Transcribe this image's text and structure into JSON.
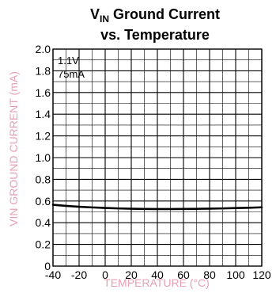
{
  "chart_data": {
    "type": "line",
    "title_main": "V",
    "title_subscript": "IN",
    "title_rest": " Ground Current",
    "title_line2": "vs. Temperature",
    "xlabel": "TEMPERATURE (°C)",
    "ylabel": "VIN GROUND CURRENT (mA)",
    "xlim": [
      -40,
      120
    ],
    "ylim": [
      0,
      2.0
    ],
    "x_ticks": [
      -40,
      -20,
      0,
      20,
      40,
      60,
      80,
      100,
      120
    ],
    "x_tick_labels": [
      "-40",
      "-20",
      "0",
      "20",
      "40",
      "60",
      "80",
      "100",
      "120"
    ],
    "y_ticks": [
      0,
      0.2,
      0.4,
      0.6,
      0.8,
      1.0,
      1.2,
      1.4,
      1.6,
      1.8,
      2.0
    ],
    "y_tick_labels": [
      "0",
      "0.2",
      "0.4",
      "0.6",
      "0.8",
      "1.0",
      "1.2",
      "1.4",
      "1.6",
      "1.8",
      "2.0"
    ],
    "minor_x_step": 10,
    "minor_y_step": 0.1,
    "grid": true,
    "annotations": [
      "1.1V",
      "75mA"
    ],
    "colors": {
      "line": "#000000",
      "grid": "#000000",
      "axis_label": "#e8a0b4"
    },
    "series": [
      {
        "x": [
          -40,
          -30,
          -20,
          -10,
          0,
          10,
          20,
          30,
          40,
          50,
          60,
          70,
          80,
          90,
          100,
          110,
          120
        ],
        "y": [
          0.565,
          0.555,
          0.547,
          0.541,
          0.536,
          0.532,
          0.529,
          0.527,
          0.526,
          0.526,
          0.527,
          0.528,
          0.53,
          0.532,
          0.535,
          0.538,
          0.542
        ]
      }
    ]
  }
}
